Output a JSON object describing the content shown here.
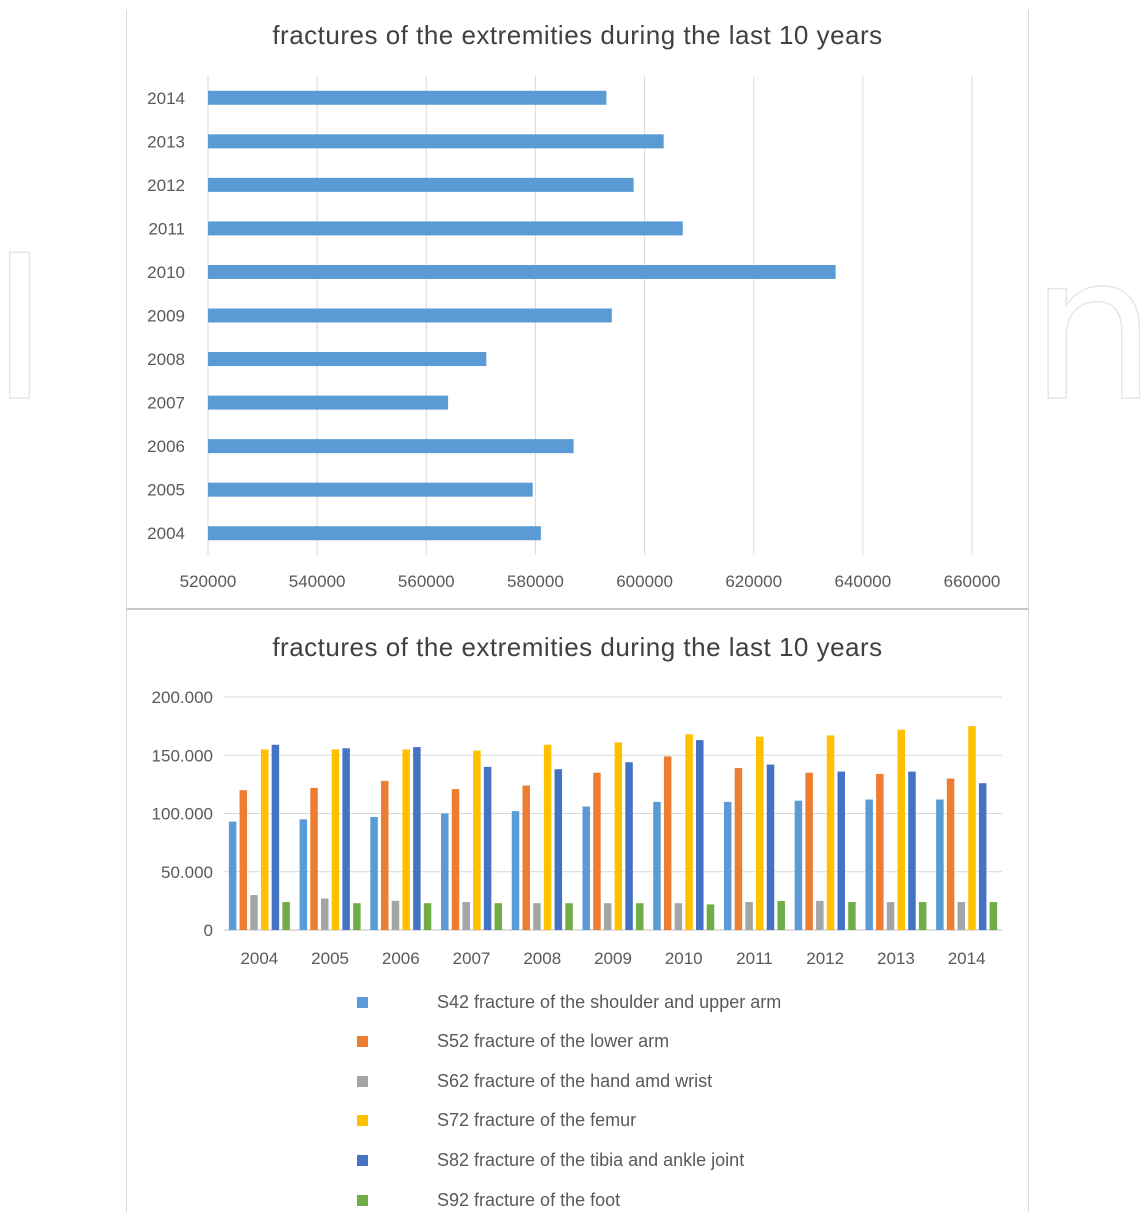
{
  "chart_data": [
    {
      "type": "bar",
      "orientation": "horizontal",
      "title": "fractures of the extremities during the last 10 years",
      "categories": [
        "2004",
        "2005",
        "2006",
        "2007",
        "2008",
        "2009",
        "2010",
        "2011",
        "2012",
        "2013",
        "2014"
      ],
      "values": [
        581000,
        579500,
        587000,
        564000,
        571000,
        594000,
        635000,
        607000,
        598000,
        603500,
        593000
      ],
      "x_ticks": [
        "520000",
        "540000",
        "560000",
        "580000",
        "600000",
        "620000",
        "640000",
        "660000"
      ],
      "xlim": [
        520000,
        660000
      ],
      "grid": "vertical",
      "color": "#5b9bd5"
    },
    {
      "type": "bar",
      "title": "fractures of the extremities during the last 10 years",
      "categories": [
        "2004",
        "2005",
        "2006",
        "2007",
        "2008",
        "2009",
        "2010",
        "2011",
        "2012",
        "2013",
        "2014"
      ],
      "y_ticks": [
        "0",
        "50.000",
        "100.000",
        "150.000",
        "200.000"
      ],
      "ylim": [
        0,
        200000
      ],
      "grid": "horizontal",
      "legend_position": "bottom",
      "series": [
        {
          "name": "S42 fracture of the shoulder and upper arm",
          "color": "#5b9bd5",
          "values": [
            93000,
            95000,
            97000,
            100000,
            102000,
            106000,
            110000,
            110000,
            111000,
            112000,
            112000
          ]
        },
        {
          "name": "S52 fracture of the lower arm",
          "color": "#ed7d31",
          "values": [
            120000,
            122000,
            128000,
            121000,
            124000,
            135000,
            149000,
            139000,
            135000,
            134000,
            130000
          ]
        },
        {
          "name": "S62 fracture of the hand amd wrist",
          "color": "#a5a5a5",
          "values": [
            30000,
            27000,
            25000,
            24000,
            23000,
            23000,
            23000,
            24000,
            25000,
            24000,
            24000
          ]
        },
        {
          "name": "S72 fracture of the femur",
          "color": "#ffc000",
          "values": [
            155000,
            155000,
            155000,
            154000,
            159000,
            161000,
            168000,
            166000,
            167000,
            172000,
            175000
          ]
        },
        {
          "name": "S82 fracture of the tibia and  ankle joint",
          "color": "#4472c4",
          "values": [
            159000,
            156000,
            157000,
            140000,
            138000,
            144000,
            163000,
            142000,
            136000,
            136000,
            126000
          ]
        },
        {
          "name": "S92 fracture of the foot",
          "color": "#70ad47",
          "values": [
            24000,
            23000,
            23000,
            23000,
            23000,
            23000,
            22000,
            25000,
            24000,
            24000,
            24000
          ]
        }
      ]
    }
  ]
}
